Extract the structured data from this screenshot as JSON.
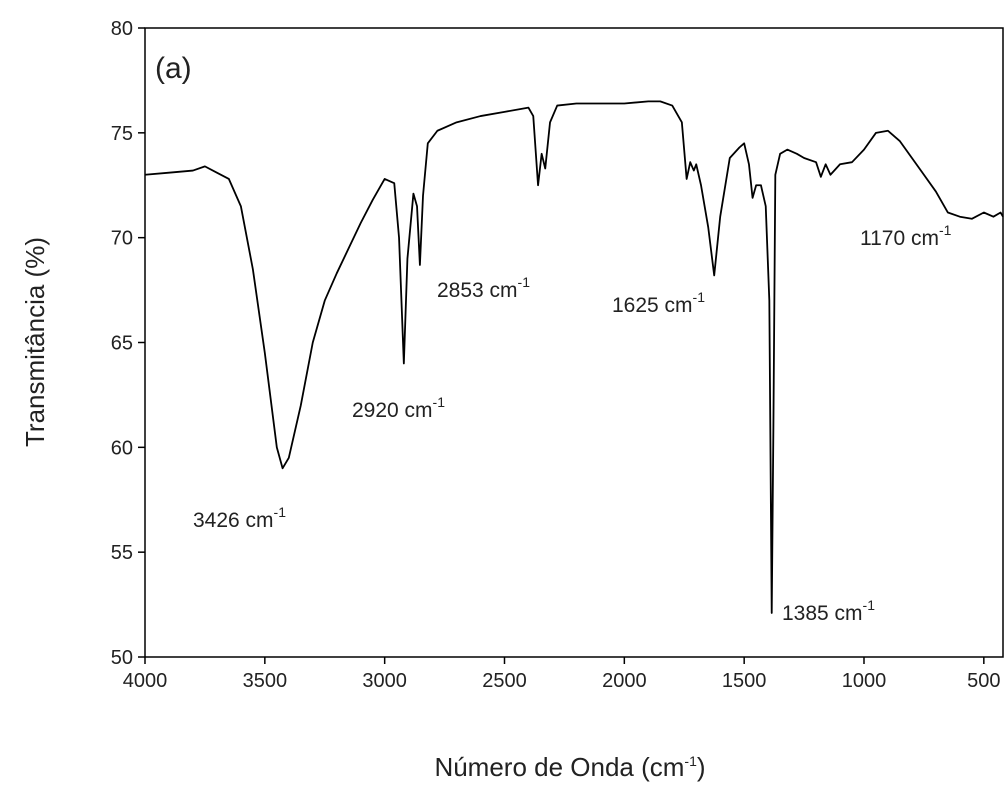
{
  "chart_data": {
    "type": "line",
    "panel_label": "(a)",
    "x_label": {
      "text": "Número de Onda (cm",
      "sup": "-1",
      "tail": ")"
    },
    "y_label": "Transmitância (%)",
    "color": "#000000",
    "xlim": [
      4000,
      420
    ],
    "ylim": [
      50,
      80
    ],
    "xticks": [
      4000,
      3500,
      3000,
      2500,
      2000,
      1500,
      1000,
      500
    ],
    "yticks": [
      50,
      55,
      60,
      65,
      70,
      75,
      80
    ],
    "annotations": [
      {
        "text": "3426 cm",
        "sup": "-1"
      },
      {
        "text": "2920 cm",
        "sup": "-1"
      },
      {
        "text": "2853 cm",
        "sup": "-1"
      },
      {
        "text": "1625 cm",
        "sup": "-1"
      },
      {
        "text": "1385 cm",
        "sup": "-1"
      },
      {
        "text": "1170 cm",
        "sup": "-1"
      }
    ],
    "x": [
      4000,
      3900,
      3800,
      3750,
      3700,
      3650,
      3600,
      3550,
      3500,
      3450,
      3426,
      3400,
      3350,
      3300,
      3250,
      3200,
      3150,
      3100,
      3050,
      3000,
      2960,
      2940,
      2920,
      2905,
      2880,
      2865,
      2853,
      2840,
      2820,
      2780,
      2700,
      2600,
      2500,
      2400,
      2380,
      2360,
      2345,
      2330,
      2310,
      2280,
      2200,
      2100,
      2000,
      1900,
      1850,
      1800,
      1760,
      1740,
      1725,
      1710,
      1700,
      1680,
      1650,
      1625,
      1600,
      1560,
      1520,
      1500,
      1480,
      1465,
      1450,
      1430,
      1410,
      1395,
      1385,
      1378,
      1370,
      1350,
      1320,
      1280,
      1250,
      1200,
      1180,
      1160,
      1140,
      1100,
      1050,
      1000,
      950,
      900,
      850,
      800,
      750,
      700,
      650,
      600,
      550,
      500,
      460,
      430,
      420
    ],
    "values": [
      73.0,
      73.1,
      73.2,
      73.4,
      73.1,
      72.8,
      71.5,
      68.5,
      64.5,
      60.0,
      59.0,
      59.5,
      62.0,
      65.0,
      67.0,
      68.3,
      69.5,
      70.7,
      71.8,
      72.8,
      72.6,
      70.0,
      64.0,
      69.0,
      72.1,
      71.5,
      68.7,
      72.0,
      74.5,
      75.1,
      75.5,
      75.8,
      76.0,
      76.2,
      75.8,
      72.5,
      74.0,
      73.3,
      75.5,
      76.3,
      76.4,
      76.4,
      76.4,
      76.5,
      76.5,
      76.3,
      75.5,
      72.8,
      73.6,
      73.2,
      73.5,
      72.5,
      70.5,
      68.2,
      71.0,
      73.8,
      74.3,
      74.5,
      73.5,
      71.9,
      72.5,
      72.5,
      71.5,
      67.0,
      52.1,
      61.0,
      73.0,
      74.0,
      74.2,
      74.0,
      73.8,
      73.6,
      72.9,
      73.5,
      73.0,
      73.5,
      73.6,
      74.2,
      75.0,
      75.1,
      74.6,
      73.8,
      73.0,
      72.2,
      71.2,
      71.0,
      70.9,
      71.2,
      71.0,
      71.2,
      71.0
    ]
  }
}
